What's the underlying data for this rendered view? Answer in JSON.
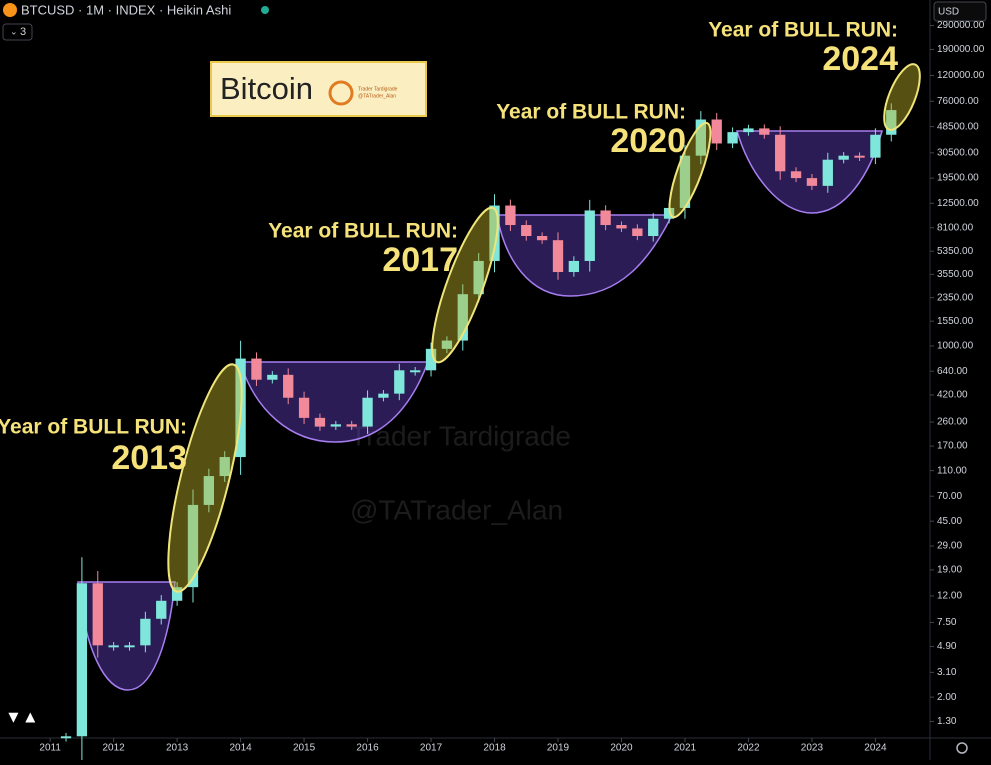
{
  "header": {
    "symbol": "BTCUSD · 1M · INDEX · Heikin Ashi",
    "indicator_count": "3",
    "currency": "USD"
  },
  "logo": {
    "title": "Bitcoin",
    "caption_1": "Trader Tardigrade",
    "caption_2": "@TATrader_Alan"
  },
  "watermark": [
    "Trader Tardigrade",
    "@TATrader_Alan"
  ],
  "chart_data": {
    "type": "candlestick",
    "log_scale": true,
    "grid": false,
    "up_color": "#7fe6dc",
    "down_color": "#f2899a",
    "x": [
      2011.25,
      2011.5,
      2011.75,
      2012.0,
      2012.25,
      2012.5,
      2012.75,
      2013.0,
      2013.25,
      2013.5,
      2013.75,
      2014.0,
      2014.25,
      2014.5,
      2014.75,
      2015.0,
      2015.25,
      2015.5,
      2015.75,
      2016.0,
      2016.25,
      2016.5,
      2016.75,
      2017.0,
      2017.25,
      2017.5,
      2017.75,
      2018.0,
      2018.25,
      2018.5,
      2018.75,
      2019.0,
      2019.25,
      2019.5,
      2019.75,
      2020.0,
      2020.25,
      2020.5,
      2020.75,
      2021.0,
      2021.25,
      2021.5,
      2021.75,
      2022.0,
      2022.25,
      2022.5,
      2022.75,
      2023.0,
      2023.25,
      2023.5,
      2023.75,
      2024.0,
      2024.25
    ],
    "values": [
      1,
      15,
      5,
      5,
      5,
      8,
      11,
      14,
      60,
      100,
      140,
      800,
      550,
      600,
      400,
      280,
      240,
      250,
      240,
      400,
      430,
      650,
      650,
      950,
      1100,
      2500,
      4500,
      12000,
      8500,
      7000,
      6500,
      3700,
      4500,
      11000,
      8500,
      8000,
      7000,
      9500,
      11500,
      29000,
      55000,
      36000,
      44000,
      47000,
      42000,
      22000,
      19500,
      17000,
      27000,
      29000,
      28000,
      42000,
      65000
    ],
    "xlim": [
      2010.21,
      2024.86
    ],
    "xticks": [
      2011,
      2012,
      2013,
      2014,
      2015,
      2016,
      2017,
      2018,
      2019,
      2020,
      2021,
      2022,
      2023,
      2024
    ],
    "ylim": [
      0.97,
      456000
    ],
    "yticks": [
      {
        "value": 1.3,
        "label": "1.30"
      },
      {
        "value": 2,
        "label": "2.00"
      },
      {
        "value": 3.1,
        "label": "3.10"
      },
      {
        "value": 4.9,
        "label": "4.90"
      },
      {
        "value": 7.5,
        "label": "7.50"
      },
      {
        "value": 12,
        "label": "12.00"
      },
      {
        "value": 19,
        "label": "19.00"
      },
      {
        "value": 29,
        "label": "29.00"
      },
      {
        "value": 45,
        "label": "45.00"
      },
      {
        "value": 70,
        "label": "70.00"
      },
      {
        "value": 110,
        "label": "110.00"
      },
      {
        "value": 170,
        "label": "170.00"
      },
      {
        "value": 260,
        "label": "260.00"
      },
      {
        "value": 420,
        "label": "420.00"
      },
      {
        "value": 640,
        "label": "640.00"
      },
      {
        "value": 1000,
        "label": "1000.00"
      },
      {
        "value": 1550,
        "label": "1550.00"
      },
      {
        "value": 2350,
        "label": "2350.00"
      },
      {
        "value": 3550,
        "label": "3550.00"
      },
      {
        "value": 5350,
        "label": "5350.00"
      },
      {
        "value": 8100,
        "label": "8100.00"
      },
      {
        "value": 12500,
        "label": "12500.00"
      },
      {
        "value": 19500,
        "label": "19500.00"
      },
      {
        "value": 30500,
        "label": "30500.00"
      },
      {
        "value": 48500,
        "label": "48500.00"
      },
      {
        "value": 76000,
        "label": "76000.00"
      },
      {
        "value": 120000,
        "label": "120000.00"
      },
      {
        "value": 190000,
        "label": "190000.00"
      },
      {
        "value": 290000,
        "label": "290000.00"
      }
    ],
    "annotations": [
      {
        "label": "Year of BULL RUN:",
        "year": "2013"
      },
      {
        "label": "Year of BULL RUN:",
        "year": "2017"
      },
      {
        "label": "Year of BULL RUN:",
        "year": "2020"
      },
      {
        "label": "Year of BULL RUN:",
        "year": "2024"
      }
    ]
  }
}
